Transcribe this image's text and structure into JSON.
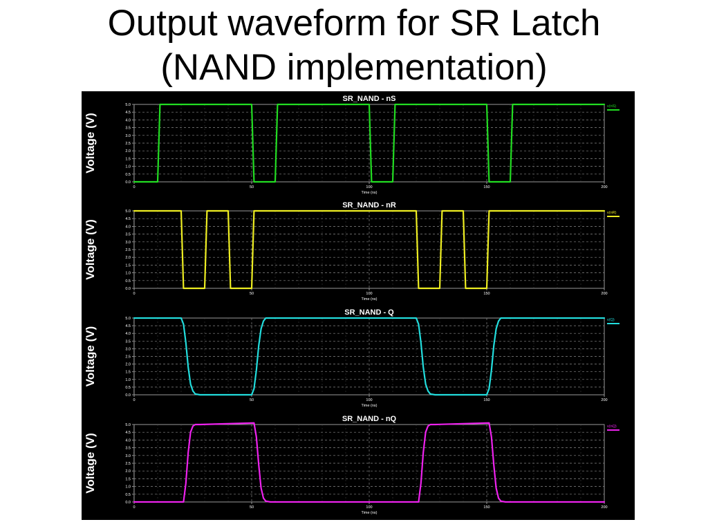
{
  "slide": {
    "title_line1": "Output waveform for SR Latch",
    "title_line2": "(NAND implementation)"
  },
  "chart_data": [
    {
      "type": "line",
      "title": "SR_NAND - nS",
      "xlabel": "Time (ns)",
      "ylabel": "Voltage (V)",
      "xlim": [
        0,
        200
      ],
      "ylim": [
        0,
        5
      ],
      "xticks": [
        "0",
        "50",
        "100",
        "150",
        "200"
      ],
      "yticks": [
        "0.0",
        "0.5",
        "1.0",
        "1.5",
        "2.0",
        "2.5",
        "3.0",
        "3.5",
        "4.0",
        "4.5",
        "5.0"
      ],
      "grid": true,
      "series": [
        {
          "name": "v(nS)",
          "color": "#22dd22",
          "x": [
            0,
            10,
            11,
            50,
            51,
            60,
            61,
            100,
            101,
            110,
            111,
            150,
            151,
            160,
            161,
            200
          ],
          "y": [
            0,
            0,
            5,
            5,
            0,
            0,
            5,
            5,
            0,
            0,
            5,
            5,
            0,
            0,
            5,
            5
          ]
        }
      ]
    },
    {
      "type": "line",
      "title": "SR_NAND - nR",
      "xlabel": "Time (ns)",
      "ylabel": "Voltage (V)",
      "xlim": [
        0,
        200
      ],
      "ylim": [
        0,
        5
      ],
      "xticks": [
        "0",
        "50",
        "100",
        "150",
        "200"
      ],
      "yticks": [
        "0.0",
        "0.5",
        "1.0",
        "1.5",
        "2.0",
        "2.5",
        "3.0",
        "3.5",
        "4.0",
        "4.5",
        "5.0"
      ],
      "grid": true,
      "series": [
        {
          "name": "v(nR)",
          "color": "#eeee22",
          "x": [
            0,
            20,
            21,
            30,
            31,
            40,
            41,
            50,
            51,
            120,
            121,
            130,
            131,
            140,
            141,
            150,
            151,
            200
          ],
          "y": [
            5,
            5,
            0,
            0,
            5,
            5,
            0,
            0,
            5,
            5,
            0,
            0,
            5,
            5,
            0,
            0,
            5,
            5
          ]
        }
      ]
    },
    {
      "type": "line",
      "title": "SR_NAND - Q",
      "xlabel": "Time (ns)",
      "ylabel": "Voltage (V)",
      "xlim": [
        0,
        200
      ],
      "ylim": [
        0,
        5
      ],
      "xticks": [
        "0",
        "50",
        "100",
        "150",
        "200"
      ],
      "yticks": [
        "0.0",
        "0.5",
        "1.0",
        "1.5",
        "2.0",
        "2.5",
        "3.0",
        "3.5",
        "4.0",
        "4.5",
        "5.0"
      ],
      "grid": true,
      "series": [
        {
          "name": "v(Q)",
          "color": "#22dddd",
          "x": [
            0,
            20,
            21,
            22,
            23,
            24,
            25,
            26,
            28,
            50,
            51,
            52,
            53,
            54,
            55,
            56,
            58,
            120,
            121,
            122,
            123,
            124,
            125,
            126,
            128,
            150,
            151,
            152,
            153,
            154,
            155,
            156,
            158,
            200
          ],
          "y": [
            5,
            5,
            4.6,
            3.4,
            1.8,
            0.7,
            0.25,
            0.05,
            0,
            0,
            0.4,
            1.6,
            3.2,
            4.3,
            4.8,
            5.0,
            5,
            5,
            4.6,
            3.4,
            1.8,
            0.7,
            0.25,
            0.05,
            0,
            0,
            0.4,
            1.6,
            3.2,
            4.3,
            4.8,
            5.0,
            5,
            5
          ]
        }
      ]
    },
    {
      "type": "line",
      "title": "SR_NAND - nQ",
      "xlabel": "Time (ns)",
      "ylabel": "Voltage (V)",
      "xlim": [
        0,
        200
      ],
      "ylim": [
        0,
        5
      ],
      "xticks": [
        "0",
        "50",
        "100",
        "150",
        "200"
      ],
      "yticks": [
        "0.0",
        "0.5",
        "1.0",
        "1.5",
        "2.0",
        "2.5",
        "3.0",
        "3.5",
        "4.0",
        "4.5",
        "5.0"
      ],
      "grid": true,
      "series": [
        {
          "name": "v(nQ)",
          "color": "#ee22ee",
          "x": [
            0,
            21,
            22,
            23,
            24,
            25,
            26,
            28,
            51,
            52,
            53,
            54,
            55,
            56,
            58,
            121,
            122,
            123,
            124,
            125,
            126,
            128,
            151,
            152,
            153,
            154,
            155,
            156,
            158,
            200
          ],
          "y": [
            0,
            0,
            1.2,
            3.2,
            4.5,
            4.9,
            5.0,
            5,
            5.1,
            4.2,
            2.4,
            0.9,
            0.25,
            0.05,
            0,
            0,
            1.2,
            3.2,
            4.5,
            4.9,
            5.0,
            5,
            5.1,
            4.2,
            2.4,
            0.9,
            0.25,
            0.05,
            0,
            0
          ]
        }
      ]
    }
  ]
}
